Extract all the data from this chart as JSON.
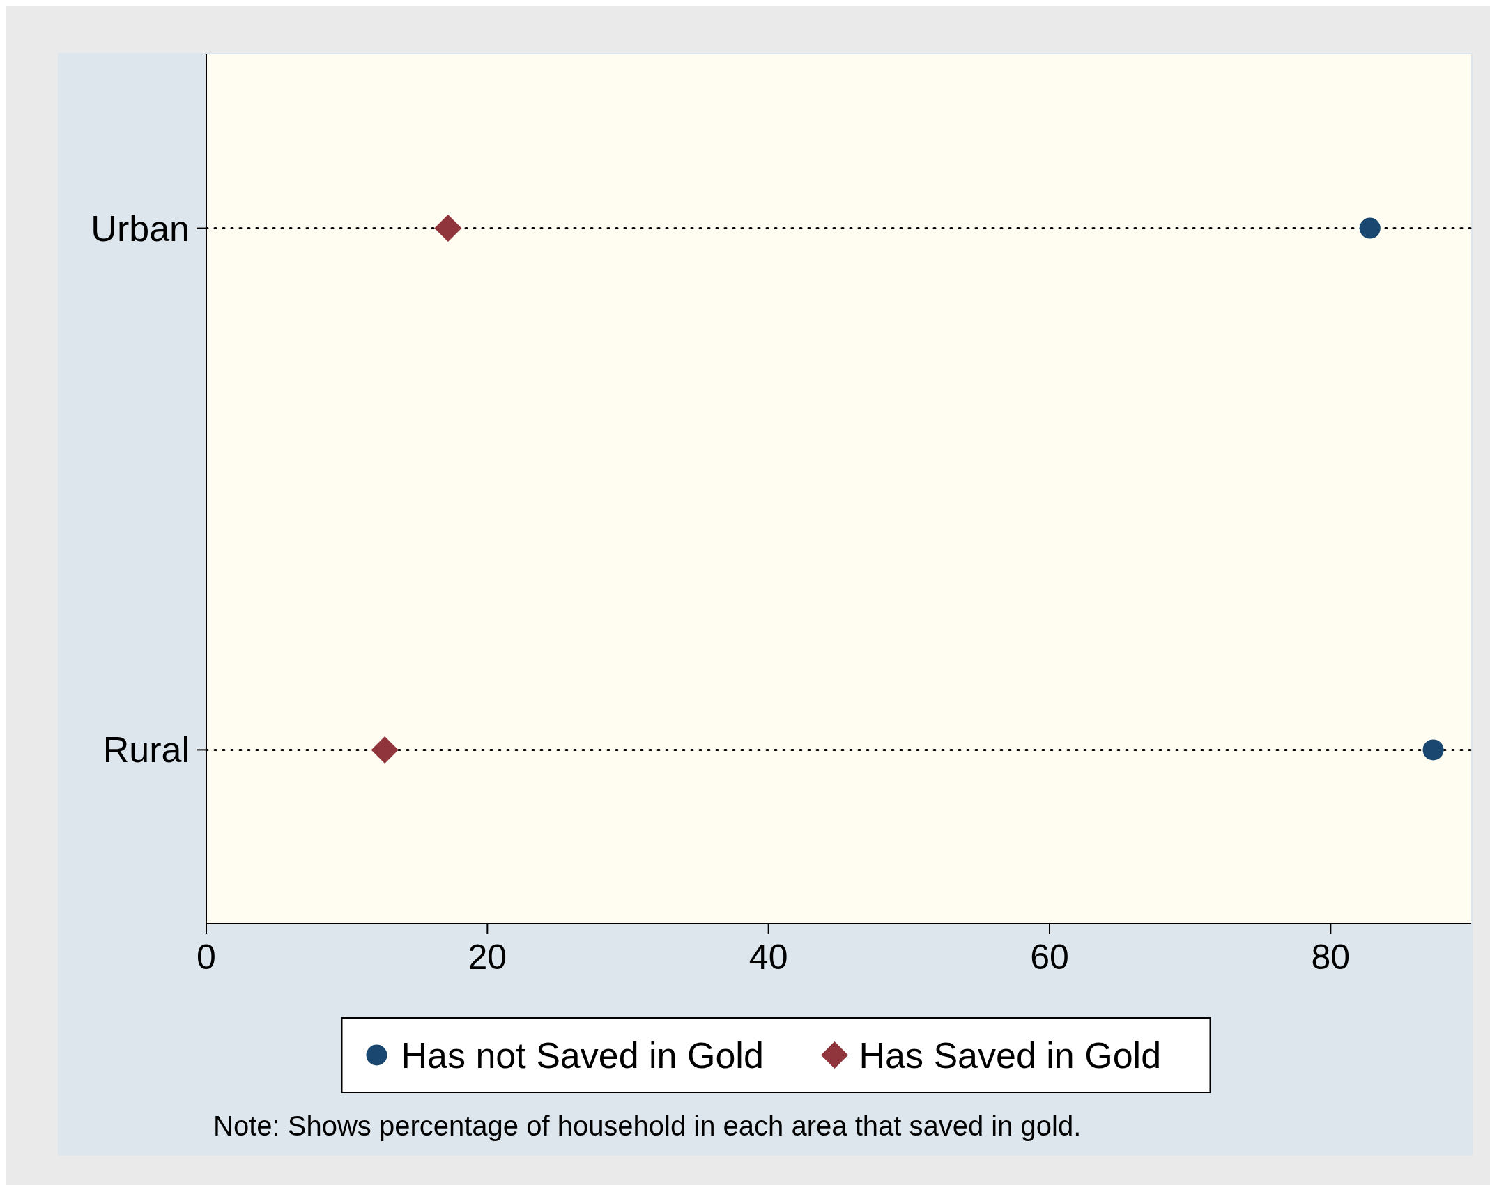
{
  "chart_data": {
    "type": "scatter",
    "orientation": "horizontal",
    "categories": [
      "Urban",
      "Rural"
    ],
    "series": [
      {
        "name": "Has not Saved in Gold",
        "color": "#1a476f",
        "marker": "circle",
        "values": [
          82.8,
          87.3
        ]
      },
      {
        "name": "Has Saved in Gold",
        "color": "#90353b",
        "marker": "diamond",
        "values": [
          17.2,
          12.7
        ]
      }
    ],
    "xlim": [
      0,
      90
    ],
    "xticks": [
      0,
      20,
      40,
      60,
      80
    ],
    "grid": "y",
    "legend": "bottom",
    "annotations": [
      "Note: Shows percentage of household in each area that saved in gold."
    ]
  }
}
